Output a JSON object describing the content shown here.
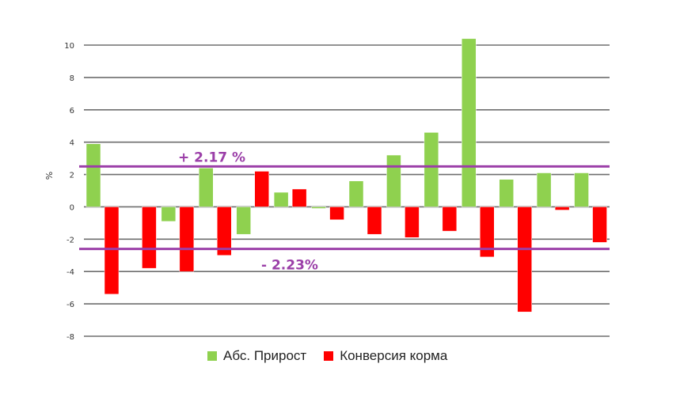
{
  "chart_data": {
    "type": "bar",
    "ylabel": "%",
    "ylim": [
      -8,
      10
    ],
    "yticks": [
      10,
      8,
      6,
      4,
      2,
      0,
      -2,
      -4,
      -6,
      -8
    ],
    "grid": true,
    "legend_placement": "bottom",
    "groups": 14,
    "series": [
      {
        "name": "Абс. Прирост",
        "color": "#8fd14f",
        "values": [
          3.9,
          null,
          -0.9,
          2.4,
          -1.7,
          0.9,
          -0.1,
          1.6,
          3.2,
          4.6,
          10.4,
          1.7,
          2.1,
          2.1
        ]
      },
      {
        "name": "Конверсия корма",
        "color": "#ff0000",
        "values": [
          -5.4,
          -3.8,
          -4.0,
          -3.0,
          2.2,
          1.1,
          -0.8,
          -1.7,
          -1.9,
          -1.5,
          -3.1,
          -6.5,
          -0.2,
          -2.2
        ]
      }
    ],
    "reference_lines": [
      {
        "value": 2.5,
        "label": "+ 2.17 %",
        "color": "#9b3fa8"
      },
      {
        "value": -2.6,
        "label": "- 2.23%",
        "color": "#9b3fa8"
      }
    ]
  }
}
